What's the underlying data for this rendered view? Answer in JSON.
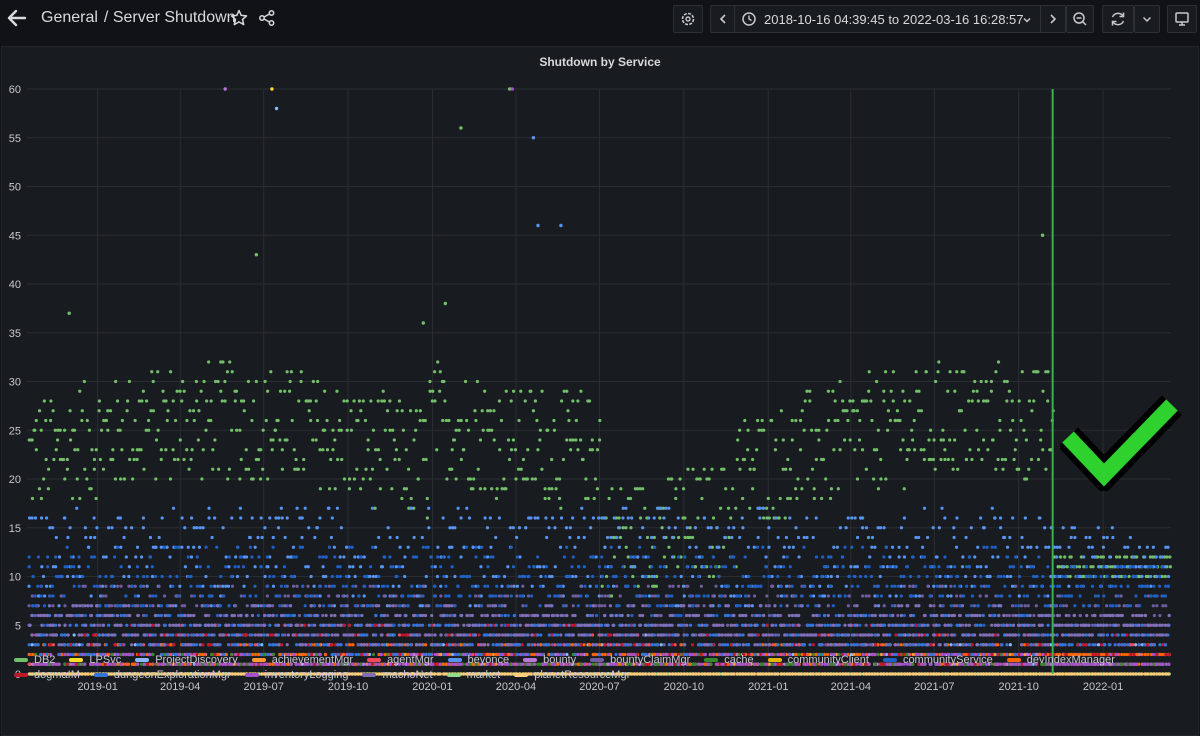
{
  "header": {
    "folder": "General",
    "title": "/ Server Shutdown",
    "time_range": "2018-10-16 04:39:45 to 2022-03-16 16:28:57"
  },
  "icons": [
    "arrow-left-icon",
    "star-icon",
    "share-icon",
    "gear-icon",
    "chevron-left-icon",
    "clock-icon",
    "chevron-down-icon",
    "chevron-right-icon",
    "zoom-out-icon",
    "refresh-icon",
    "monitor-icon",
    "checkmark-icon"
  ],
  "colors": {
    "background": "#111217",
    "panel": "#181b1f",
    "grid": "#2a2d33",
    "annotation": "#37b24d",
    "checkmark": "#2fd12f"
  },
  "chart_data": {
    "type": "scatter",
    "title": "Shutdown by Service",
    "ylim": [
      0,
      60
    ],
    "y_ticks": [
      0,
      5,
      10,
      15,
      20,
      25,
      30,
      35,
      40,
      45,
      50,
      55,
      60
    ],
    "x_ticks": [
      "2019-01",
      "2019-04",
      "2019-07",
      "2019-10",
      "2020-01",
      "2020-04",
      "2020-07",
      "2020-10",
      "2021-01",
      "2021-04",
      "2021-07",
      "2021-10",
      "2022-01"
    ],
    "xlim": [
      "2018-10-16",
      "2022-03-16"
    ],
    "annotation": {
      "x": "2021-11-07"
    },
    "grid": true,
    "legend_placement": "bottom",
    "series": [
      {
        "name": "DB2",
        "color": "#73bf69",
        "typical": 22,
        "spread": 6,
        "peaks": [
          {
            "x": "2018-12-01",
            "y": 37
          },
          {
            "x": "2019-06-23",
            "y": 43
          },
          {
            "x": "2019-12-22",
            "y": 36
          },
          {
            "x": "2020-01-15",
            "y": 38
          },
          {
            "x": "2020-02-01",
            "y": 56
          },
          {
            "x": "2020-03-25",
            "y": 60
          },
          {
            "x": "2021-10-27",
            "y": 45
          }
        ]
      },
      {
        "name": "LPSvc",
        "color": "#fade2a",
        "typical": 0,
        "spread": 0.5,
        "peaks": [
          {
            "x": "2019-07-10",
            "y": 60
          }
        ]
      },
      {
        "name": "ProjectDiscovery",
        "color": "#8ab8ff",
        "typical": 2,
        "spread": 2,
        "peaks": [
          {
            "x": "2019-07-15",
            "y": 58
          }
        ]
      },
      {
        "name": "achievementMgr",
        "color": "#ff9830",
        "typical": 1,
        "spread": 1,
        "peaks": []
      },
      {
        "name": "agentMgr",
        "color": "#f2495c",
        "typical": 2,
        "spread": 2,
        "peaks": []
      },
      {
        "name": "beyonce",
        "color": "#5794f2",
        "typical": 12,
        "spread": 5,
        "peaks": [
          {
            "x": "2020-04-25",
            "y": 46
          },
          {
            "x": "2020-05-20",
            "y": 46
          },
          {
            "x": "2020-04-20",
            "y": 55
          }
        ]
      },
      {
        "name": "bounty",
        "color": "#b877d9",
        "typical": 1,
        "spread": 1,
        "peaks": [
          {
            "x": "2019-05-20",
            "y": 60
          }
        ]
      },
      {
        "name": "bountyClaimMgr",
        "color": "#705da0",
        "typical": 6,
        "spread": 3,
        "peaks": []
      },
      {
        "name": "cache",
        "color": "#37872d",
        "typical": 1,
        "spread": 1,
        "peaks": []
      },
      {
        "name": "communityClient",
        "color": "#e0b400",
        "typical": 0,
        "spread": 0.5,
        "peaks": []
      },
      {
        "name": "communityService",
        "color": "#1f60c4",
        "typical": 9,
        "spread": 4,
        "peaks": []
      },
      {
        "name": "devIndexManager",
        "color": "#fa6400",
        "typical": 2,
        "spread": 1,
        "peaks": []
      },
      {
        "name": "dogmaIM",
        "color": "#c4162a",
        "typical": 3,
        "spread": 2,
        "peaks": []
      },
      {
        "name": "dungeonExplorationMgr",
        "color": "#3274d9",
        "typical": 4,
        "spread": 2,
        "peaks": []
      },
      {
        "name": "inventoryLogging",
        "color": "#a352cc",
        "typical": 1,
        "spread": 1,
        "peaks": [
          {
            "x": "2020-03-28",
            "y": 60
          }
        ]
      },
      {
        "name": "machoNet",
        "color": "#806eb7",
        "typical": 5,
        "spread": 2,
        "peaks": []
      },
      {
        "name": "market",
        "color": "#96d98d",
        "typical": 0,
        "spread": 0.3,
        "peaks": []
      },
      {
        "name": "planetResourceMgr",
        "color": "#ffcb7d",
        "typical": 0,
        "spread": 0.3,
        "peaks": []
      }
    ]
  }
}
